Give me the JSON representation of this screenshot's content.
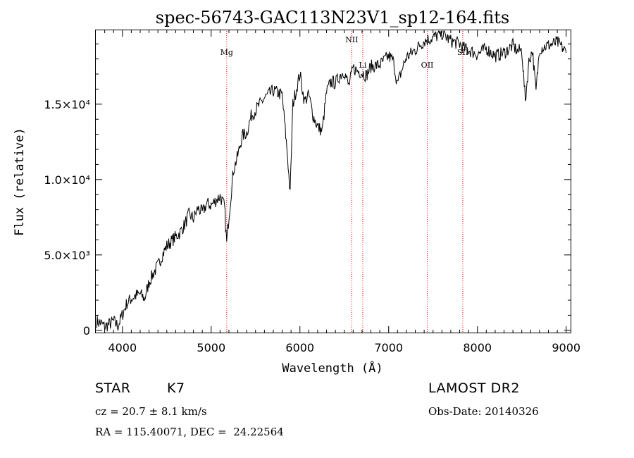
{
  "chart_data": {
    "type": "line",
    "title": "spec-56743-GAC113N23V1_sp12-164.fits",
    "xlabel": "Wavelength (Å)",
    "ylabel": "Flux (relative)",
    "xlim": [
      3700,
      9050
    ],
    "ylim": [
      -150,
      19900
    ],
    "x_ticks": [
      4000,
      5000,
      6000,
      7000,
      8000,
      9000
    ],
    "x_tick_labels": [
      "4000",
      "5000",
      "6000",
      "7000",
      "8000",
      "9000"
    ],
    "y_ticks": [
      0,
      5000,
      10000,
      15000
    ],
    "y_tick_labels": [
      "0",
      "5.0×10³",
      "1.0×10⁴",
      "1.5×10⁴"
    ],
    "grid": false,
    "series": [
      {
        "color": "#000000",
        "x": [
          3710,
          3750,
          3800,
          3850,
          3900,
          3950,
          3990,
          4050,
          4100,
          4150,
          4200,
          4250,
          4300,
          4350,
          4400,
          4450,
          4500,
          4550,
          4600,
          4650,
          4700,
          4750,
          4800,
          4850,
          4900,
          4950,
          5000,
          5050,
          5100,
          5150,
          5175,
          5200,
          5250,
          5300,
          5350,
          5400,
          5450,
          5500,
          5600,
          5700,
          5800,
          5860,
          5890,
          5920,
          6000,
          6050,
          6100,
          6150,
          6200,
          6250,
          6300,
          6350,
          6400,
          6450,
          6500,
          6550,
          6600,
          6650,
          6700,
          6750,
          6800,
          6900,
          7000,
          7050,
          7100,
          7150,
          7200,
          7300,
          7400,
          7500,
          7600,
          7700,
          7800,
          7850,
          7900,
          8000,
          8100,
          8200,
          8300,
          8400,
          8450,
          8500,
          8540,
          8580,
          8620,
          8660,
          8700,
          8800,
          8900,
          8950,
          9000
        ],
        "y": [
          600,
          500,
          250,
          400,
          600,
          300,
          900,
          1800,
          2100,
          2300,
          2400,
          2100,
          3200,
          3800,
          4300,
          5000,
          5600,
          5900,
          6200,
          6500,
          7000,
          7700,
          7400,
          8100,
          7800,
          8400,
          8300,
          8600,
          8900,
          8200,
          5800,
          7600,
          10600,
          11600,
          12900,
          13100,
          14200,
          14600,
          15400,
          15900,
          15600,
          11600,
          9000,
          15000,
          17000,
          15200,
          15600,
          14200,
          13500,
          13200,
          15800,
          16500,
          16400,
          16900,
          17200,
          16200,
          17400,
          17200,
          17100,
          16900,
          17500,
          17600,
          18200,
          17900,
          16300,
          17300,
          18100,
          18600,
          19200,
          19400,
          19700,
          19200,
          19000,
          18700,
          18600,
          18300,
          18700,
          18200,
          18400,
          18900,
          18500,
          18600,
          15200,
          17800,
          18600,
          15800,
          18700,
          18900,
          19100,
          18800,
          18400
        ]
      }
    ],
    "line_markers": [
      {
        "label": "Mg",
        "x": 5175
      },
      {
        "label": "NII",
        "x": 6584
      },
      {
        "label": "Li",
        "x": 6708
      },
      {
        "label": "OII",
        "x": 7435
      },
      {
        "label": "SII",
        "x": 7835
      }
    ],
    "line_marker_color": "#ff0000"
  },
  "info": {
    "object_class": "STAR",
    "subclass": "K7",
    "survey": "LAMOST DR2",
    "cz": "cz = 20.7 ± 8.1 km/s",
    "obs_date": "Obs-Date: 20140326",
    "coords": "RA = 115.40071, DEC =  24.22564"
  }
}
